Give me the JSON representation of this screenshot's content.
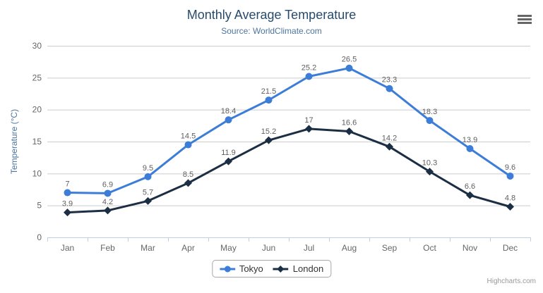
{
  "credit": "Highcharts.com",
  "colors": {
    "title": "#274b6d",
    "subtitle": "#4d759e",
    "axis_title": "#4d759e",
    "axis_labels": "#666666",
    "grid_line": "#cccccc",
    "axis_line": "#c0d0e0",
    "data_label": "#606060",
    "legend_text": "#333333",
    "legend_border": "#a7a7a7",
    "credit_text": "#999999",
    "menu_icon": "#666666"
  },
  "chart_data": {
    "type": "line",
    "title": "Monthly Average Temperature",
    "subtitle": "Source: WorldClimate.com",
    "categories": [
      "Jan",
      "Feb",
      "Mar",
      "Apr",
      "May",
      "Jun",
      "Jul",
      "Aug",
      "Sep",
      "Oct",
      "Nov",
      "Dec"
    ],
    "series": [
      {
        "name": "Tokyo",
        "color": "#3c7dd8",
        "marker": "circle",
        "values": [
          7,
          6.9,
          9.5,
          14.5,
          18.4,
          21.5,
          25.2,
          26.5,
          23.3,
          18.3,
          13.9,
          9.6
        ]
      },
      {
        "name": "London",
        "color": "#1c2e43",
        "marker": "diamond",
        "values": [
          3.9,
          4.2,
          5.7,
          8.5,
          11.9,
          15.2,
          17,
          16.6,
          14.2,
          10.3,
          6.6,
          4.8
        ]
      }
    ],
    "xlabel": "",
    "ylabel": "Temperature (°C)",
    "ylim": [
      0,
      30
    ],
    "ytick_interval": 5,
    "grid": "horizontal",
    "legend_position": "bottom-center",
    "data_labels": true
  }
}
